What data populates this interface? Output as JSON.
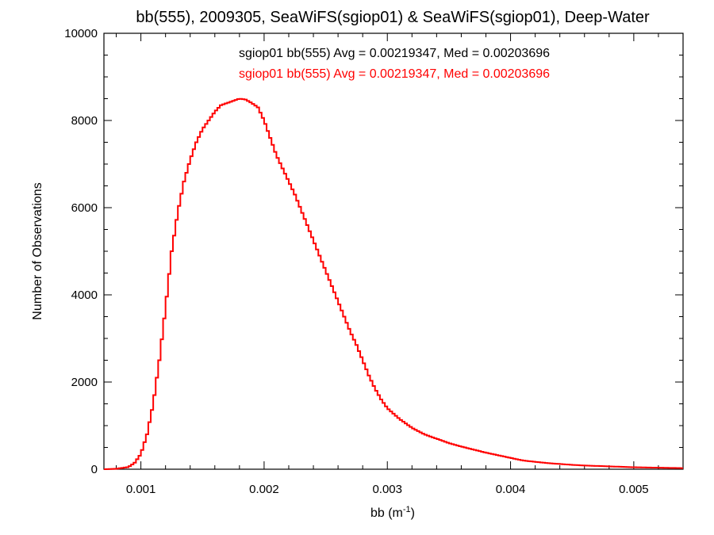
{
  "chart_data": {
    "type": "line",
    "title": "bb(555), 2009305, SeaWiFS(sgiop01) & SeaWiFS(sgiop01), Deep-Water",
    "xlabel": {
      "base": "bb (m",
      "sup": "-1",
      "close": ")"
    },
    "ylabel": "Number of Observations",
    "xlim": [
      0.0007,
      0.0054
    ],
    "ylim": [
      0,
      10000
    ],
    "xticks": [
      0.001,
      0.002,
      0.003,
      0.004,
      0.005
    ],
    "xtick_labels": [
      "0.001",
      "0.002",
      "0.003",
      "0.004",
      "0.005"
    ],
    "yticks": [
      0,
      2000,
      4000,
      6000,
      8000,
      10000
    ],
    "ytick_labels": [
      "0",
      "2000",
      "4000",
      "6000",
      "8000",
      "10000"
    ],
    "grid": false,
    "annotations": [
      {
        "text": "sgiop01 bb(555) Avg = 0.00219347, Med = 0.00203696",
        "color": "#000000"
      },
      {
        "text": "sgiop01 bb(555) Avg = 0.00219347, Med = 0.00203696",
        "color": "#ff0000"
      }
    ],
    "series": [
      {
        "color": "#ff0000",
        "x": [
          0.0007,
          0.0008,
          0.0009,
          0.00095,
          0.001,
          0.00105,
          0.0011,
          0.00115,
          0.0012,
          0.00125,
          0.0013,
          0.00135,
          0.0014,
          0.00145,
          0.0015,
          0.00155,
          0.0016,
          0.00165,
          0.0017,
          0.00175,
          0.0018,
          0.00185,
          0.0019,
          0.00195,
          0.002,
          0.00205,
          0.0021,
          0.00215,
          0.0022,
          0.00225,
          0.0023,
          0.00235,
          0.0024,
          0.00245,
          0.0025,
          0.00255,
          0.0026,
          0.00265,
          0.0027,
          0.00275,
          0.0028,
          0.00285,
          0.0029,
          0.00295,
          0.003,
          0.0031,
          0.0032,
          0.0033,
          0.0034,
          0.0035,
          0.0036,
          0.0037,
          0.0038,
          0.0039,
          0.004,
          0.0041,
          0.0042,
          0.0043,
          0.0044,
          0.0045,
          0.0046,
          0.0047,
          0.0048,
          0.0049,
          0.005,
          0.0051,
          0.0052,
          0.0053,
          0.0054
        ],
        "values": [
          0,
          10,
          50,
          150,
          350,
          800,
          1500,
          2500,
          3700,
          5000,
          5900,
          6600,
          7100,
          7500,
          7800,
          8000,
          8200,
          8350,
          8400,
          8450,
          8500,
          8480,
          8400,
          8300,
          8000,
          7600,
          7200,
          6900,
          6600,
          6300,
          5950,
          5600,
          5250,
          4900,
          4550,
          4200,
          3850,
          3500,
          3150,
          2850,
          2500,
          2150,
          1850,
          1600,
          1400,
          1150,
          950,
          800,
          700,
          600,
          520,
          450,
          380,
          320,
          260,
          200,
          170,
          140,
          120,
          100,
          85,
          75,
          65,
          55,
          45,
          40,
          35,
          30,
          25
        ]
      }
    ]
  }
}
